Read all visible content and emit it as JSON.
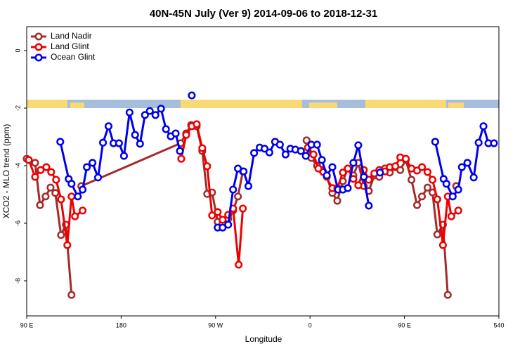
{
  "chart_data": {
    "type": "line",
    "title": "40N-45N July (Ver 9)   2014-09-06 to 2018-12-31",
    "x_label": "Longitude",
    "y_label": "XCO2 - MLO trend (ppm)",
    "xlim": [
      90,
      540
    ],
    "ylim": [
      -9.22,
      0.83
    ],
    "xticks": [
      {
        "value": 90,
        "label": "90 E"
      },
      180,
      {
        "value": 270,
        "label": "90 W"
      },
      {
        "value": 360,
        "label": "0"
      },
      {
        "value": 450,
        "label": "90 E"
      },
      540
    ],
    "yticks": [
      0,
      -2,
      -4,
      -6,
      -8
    ],
    "legend": "top-left",
    "series": [
      {
        "name": "Land Nadir",
        "color": "#a52a2a",
        "x": [
          90,
          98,
          102.7,
          108,
          112.7,
          117.3,
          122.7,
          127.3,
          132.7,
          142,
          142,
          236.7,
          242,
          246.7,
          252,
          257.3,
          262,
          266.7,
          272,
          276.7,
          282,
          286.7,
          291.3,
          296,
          300,
          356.7,
          361.3,
          366.7,
          371.3,
          376,
          381.3,
          386,
          391.3,
          396,
          401.3,
          406,
          411.3,
          416,
          421.3,
          426,
          431.3,
          436,
          441.3,
          446,
          451.3,
          456.7,
          462,
          466.7,
          472,
          476.7,
          481.3,
          486.7,
          491.3,
          495,
          499.3
        ],
        "values": [
          -3.76,
          -3.9,
          -5.37,
          -5.07,
          -4.76,
          -4.95,
          -6.41,
          -6.05,
          -8.49,
          null,
          -4.71,
          -3.22,
          -2.88,
          -2.59,
          -2.63,
          -3.49,
          -4.98,
          -4.93,
          -5.95,
          -6.0,
          -5.85,
          -5.56,
          -5.07,
          -4.2,
          null,
          -3.12,
          -3.73,
          -4.0,
          -4.15,
          -4.39,
          -4.95,
          -5.22,
          -4.54,
          -4.1,
          -4.34,
          -3.9,
          -4.71,
          -4.88,
          -4.34,
          -4.39,
          -4.1,
          -4.24,
          -4.05,
          -4.15,
          -3.8,
          -4.49,
          -5.37,
          -5.07,
          -4.76,
          -4.93,
          -6.39,
          -6.05,
          -8.49,
          null,
          -4.71
        ]
      },
      {
        "name": "Land Glint",
        "color": "#ee0000",
        "x": [
          92,
          98,
          103.3,
          108.7,
          113.3,
          118,
          122.7,
          128.7,
          132.7,
          136,
          143.3,
          200,
          237.3,
          242,
          247.3,
          252,
          257.3,
          262,
          266.7,
          272,
          276.7,
          282,
          286.7,
          292,
          296,
          320,
          358,
          363.3,
          368,
          372.7,
          381.3,
          386,
          391.3,
          396,
          401.3,
          406,
          411.3,
          416,
          421.3,
          426,
          431.3,
          436,
          441.3,
          446,
          451.3,
          456.7,
          462,
          466.7,
          472,
          476.7,
          481.3,
          486.7,
          491.3,
          494.7,
          501.3
        ],
        "values": [
          -3.8,
          -4.39,
          -4.15,
          -4.05,
          -4.22,
          -4.49,
          -5.17,
          -6.76,
          -5.07,
          -5.76,
          -5.56,
          null,
          -3.76,
          -2.93,
          -2.63,
          -2.56,
          -3.39,
          -4.02,
          -5.73,
          -5.61,
          -5.88,
          -5.71,
          -5.49,
          -7.44,
          -5.49,
          null,
          -3.37,
          -3.61,
          -4.1,
          -4.22,
          -4.78,
          -4.78,
          -4.24,
          -4.1,
          -4.46,
          -4.68,
          -4.15,
          -4.49,
          -4.27,
          -4.15,
          -4.2,
          -4.05,
          -4.02,
          -3.71,
          -3.76,
          -4.1,
          -4.17,
          -4.05,
          -4.22,
          -4.49,
          -5.17,
          -6.76,
          -5.07,
          -5.76,
          -5.56
        ]
      },
      {
        "name": "Ocean Glint",
        "color": "#0000ee",
        "x": [
          122,
          130,
          132.7,
          138.7,
          143.3,
          147.3,
          152.7,
          158,
          162.7,
          168,
          172.7,
          178,
          182.7,
          188,
          193.3,
          198,
          202.7,
          207.3,
          212.7,
          218,
          222.7,
          227.3,
          232,
          236,
          240,
          247.3,
          260,
          272,
          276.7,
          282,
          286.7,
          291.3,
          296.7,
          301.3,
          306.7,
          312,
          316.7,
          321.3,
          326.7,
          331.3,
          336.7,
          341.3,
          346,
          351.3,
          356,
          361.3,
          366.7,
          371.3,
          376,
          381.3,
          386.7,
          391.3,
          396,
          401.3,
          406,
          411.3,
          416,
          420,
          426.7,
          450,
          479.3,
          487.3,
          490,
          496,
          501.3,
          504.7,
          510,
          516,
          520.7,
          525.3,
          530,
          535.3
        ],
        "values": [
          -3.17,
          -4.46,
          -4.63,
          -5.07,
          -4.83,
          -4.05,
          -3.9,
          -4.41,
          -3.2,
          -2.63,
          -3.22,
          -3.22,
          -3.66,
          -2.15,
          -2.93,
          -3.24,
          -2.24,
          -2.1,
          -2.24,
          -2.02,
          -2.73,
          -2.98,
          -2.88,
          -3.49,
          null,
          -1.56,
          null,
          -6.15,
          -6.15,
          -6.05,
          -4.83,
          -4.1,
          -4.2,
          -4.71,
          -3.56,
          -3.37,
          -3.41,
          -3.54,
          -3.17,
          -3.27,
          -3.61,
          -3.41,
          -3.44,
          -3.49,
          -3.66,
          -3.27,
          -3.27,
          -3.8,
          -4.34,
          -4.05,
          -4.83,
          -4.83,
          -4.78,
          -3.9,
          -3.29,
          -4.39,
          -5.39,
          null,
          -4.24,
          null,
          -3.17,
          -4.46,
          -4.63,
          -5.07,
          -4.83,
          -4.05,
          -3.9,
          -4.41,
          -3.2,
          -2.63,
          -3.22,
          -3.22
        ]
      }
    ]
  }
}
